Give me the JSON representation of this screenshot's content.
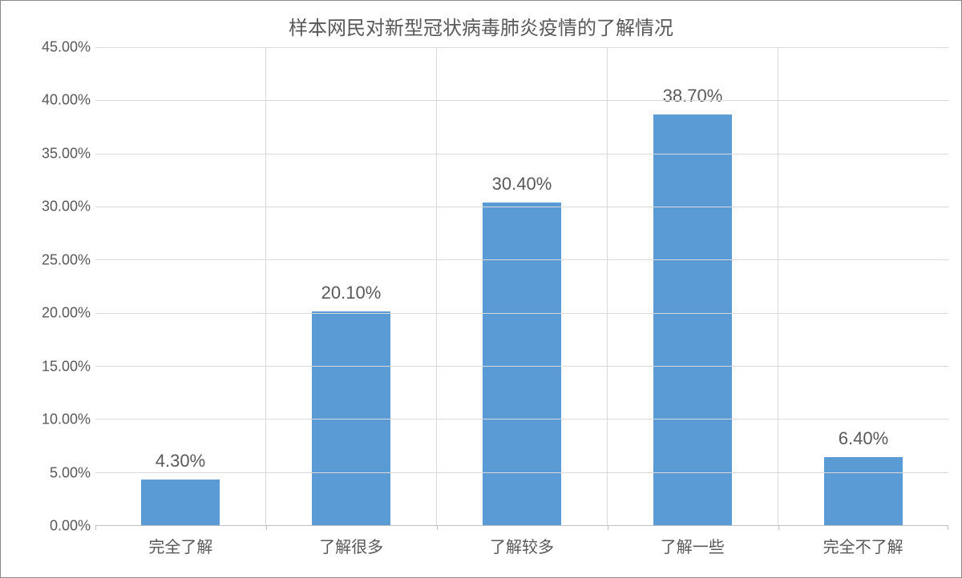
{
  "chart": {
    "type": "bar",
    "title": "样本网民对新型冠状病毒肺炎疫情的了解情况",
    "title_fontsize": 24,
    "title_color": "#595959",
    "background_color": "#ffffff",
    "border_color": "#888888",
    "grid_color": "#d9d9d9",
    "axis_line_color": "#bfbfbf",
    "label_color": "#595959",
    "label_fontsize": 18,
    "value_label_fontsize": 22,
    "xlabel_fontsize": 20,
    "bar_color": "#5b9bd5",
    "bar_width_ratio": 0.46,
    "categories": [
      "完全了解",
      "了解很多",
      "了解较多",
      "了解一些",
      "完全不了解"
    ],
    "values": [
      4.3,
      20.1,
      30.4,
      38.7,
      6.4
    ],
    "value_labels": [
      "4.30%",
      "20.10%",
      "30.40%",
      "38.70%",
      "6.40%"
    ],
    "ylim": [
      0,
      45
    ],
    "ytick_step": 5,
    "y_ticks": [
      0,
      5,
      10,
      15,
      20,
      25,
      30,
      35,
      40,
      45
    ],
    "y_tick_labels": [
      "0.00%",
      "5.00%",
      "10.00%",
      "15.00%",
      "20.00%",
      "25.00%",
      "30.00%",
      "35.00%",
      "40.00%",
      "45.00%"
    ]
  }
}
